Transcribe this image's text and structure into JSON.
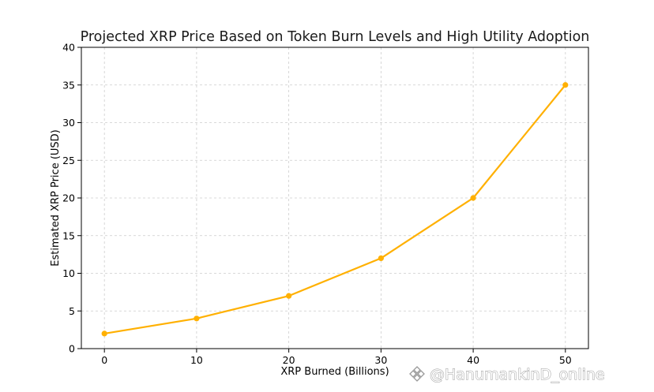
{
  "chart_data": {
    "type": "line",
    "title": "Projected XRP Price Based on Token Burn Levels and High Utility Adoption",
    "xlabel": "XRP Burned (Billions)",
    "ylabel": "Estimated XRP Price (USD)",
    "x": [
      0,
      10,
      20,
      30,
      40,
      50
    ],
    "series": [
      {
        "values": [
          2,
          4,
          7,
          12,
          20,
          35
        ],
        "color": "#FFB000",
        "marker": "circle"
      }
    ],
    "xlim": [
      -2.5,
      52.5
    ],
    "ylim": [
      0,
      40
    ],
    "xticks": [
      0,
      10,
      20,
      30,
      40,
      50
    ],
    "yticks": [
      0,
      5,
      10,
      15,
      20,
      25,
      30,
      35,
      40
    ],
    "grid": true
  },
  "watermark": {
    "text": "@HanumankinD_online",
    "logo": "binance-logo-icon"
  }
}
